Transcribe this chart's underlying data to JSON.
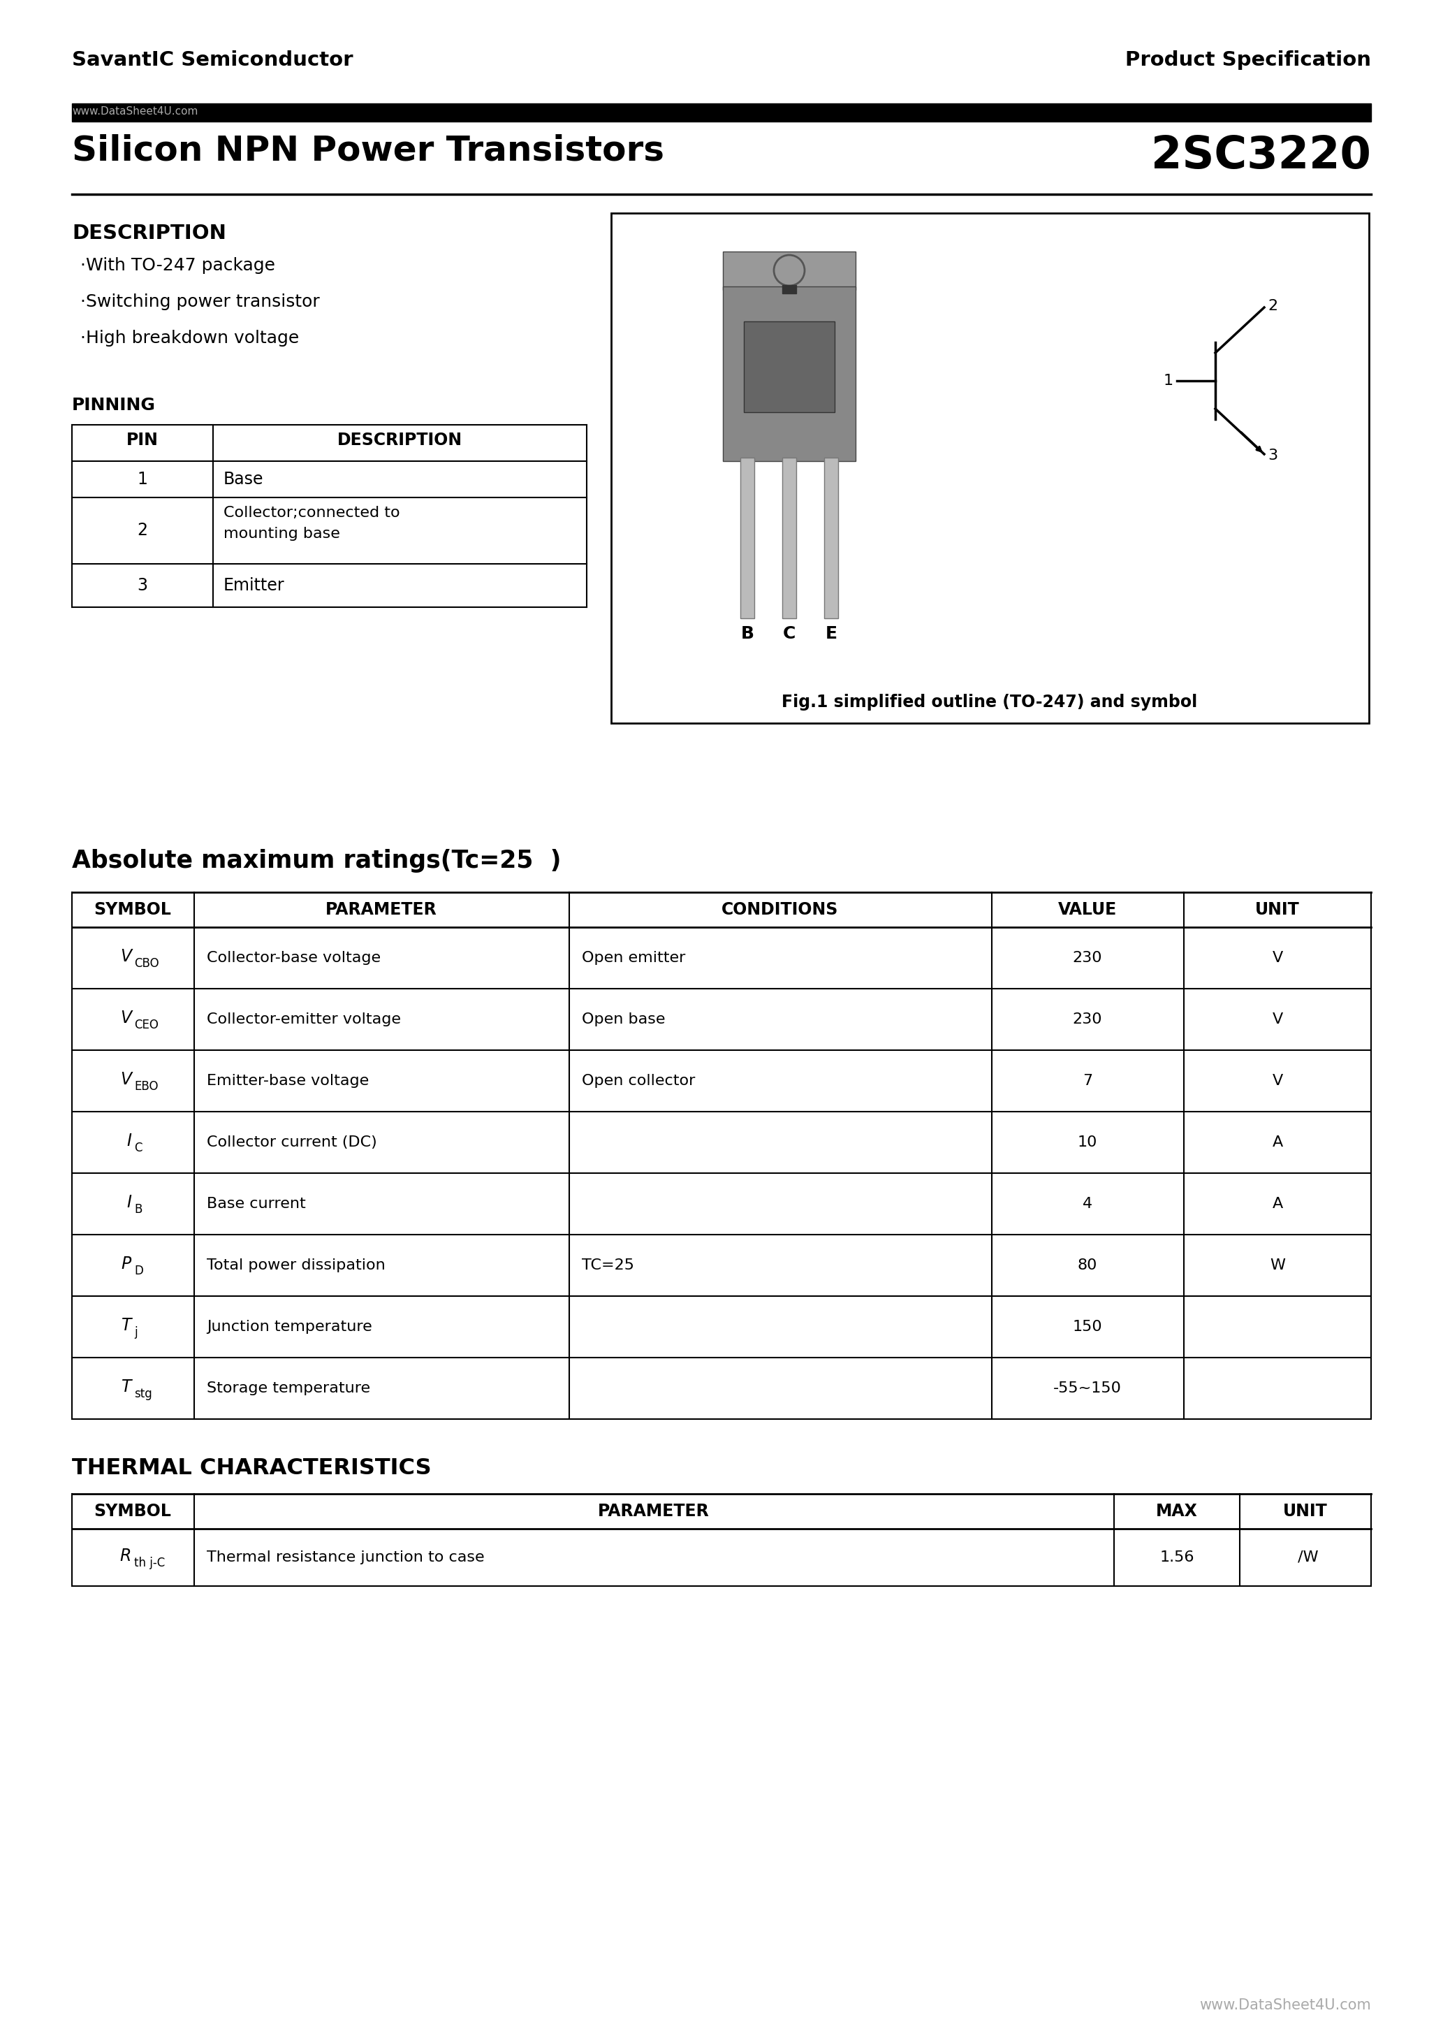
{
  "page_bg": "#ffffff",
  "header_left": "SavantIC Semiconductor",
  "header_right": "Product Specification",
  "title_left": "Silicon NPN Power Transistors",
  "title_right": "2SC3220",
  "description_title": "DESCRIPTION",
  "description_items": [
    "·With TO-247 package",
    "·Switching power transistor",
    "·High breakdown voltage"
  ],
  "fig_caption": "Fig.1 simplified outline (TO-247) and symbol",
  "pinning_title": "PINNING",
  "pinning_headers": [
    "PIN",
    "DESCRIPTION"
  ],
  "abs_max_title": "Absolute maximum ratings(Tc=25  )",
  "abs_max_headers": [
    "SYMBOL",
    "PARAMETER",
    "CONDITIONS",
    "VALUE",
    "UNIT"
  ],
  "abs_max_rows": [
    [
      "VCBO",
      "CBO",
      "Collector-base voltage",
      "Open emitter",
      "230",
      "V"
    ],
    [
      "VCEO",
      "CEO",
      "Collector-emitter voltage",
      "Open base",
      "230",
      "V"
    ],
    [
      "VEBO",
      "EBO",
      "Emitter-base voltage",
      "Open collector",
      "7",
      "V"
    ],
    [
      "IC",
      "C",
      "Collector current (DC)",
      "",
      "10",
      "A"
    ],
    [
      "IB",
      "B",
      "Base current",
      "",
      "4",
      "A"
    ],
    [
      "PD",
      "D",
      "Total power dissipation",
      "TC=25 ",
      "80",
      "W"
    ],
    [
      "Tj",
      "j",
      "Junction temperature",
      "",
      "150",
      " "
    ],
    [
      "Tstg",
      "stg",
      "Storage temperature",
      "",
      "-55~150",
      " "
    ]
  ],
  "thermal_title": "THERMAL CHARACTERISTICS",
  "thermal_headers": [
    "SYMBOL",
    "PARAMETER",
    "MAX",
    "UNIT"
  ],
  "thermal_rows": [
    [
      "Rth j-C",
      "th j-C",
      "Thermal resistance junction to case",
      "1.56",
      " /W"
    ]
  ],
  "footer": "www.DataSheet4U.com"
}
